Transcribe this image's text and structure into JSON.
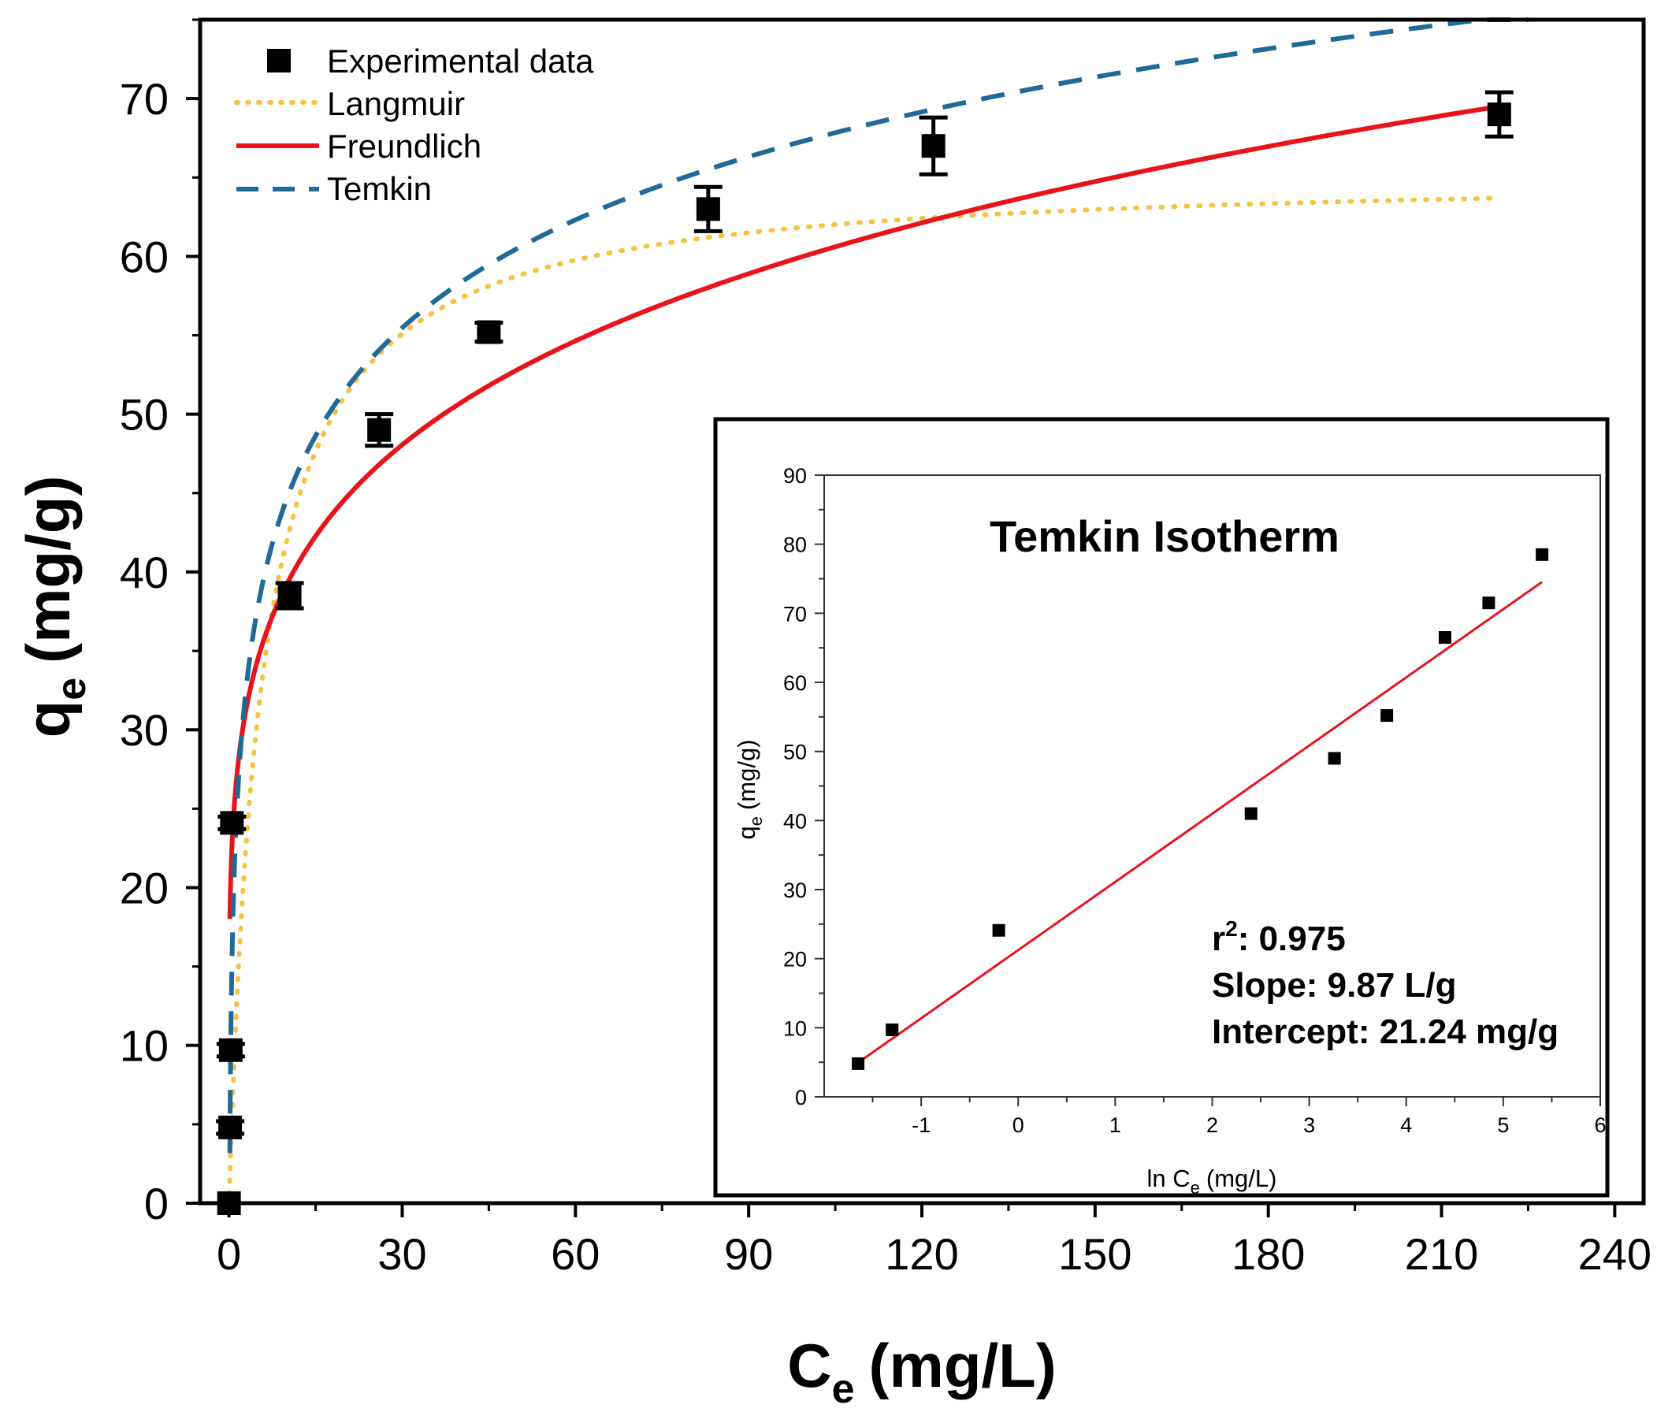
{
  "chart_data": [
    {
      "type": "scatter",
      "xlabel": "C",
      "xlabel_sub": "e",
      "xlabel_unit": "(mg/L)",
      "ylabel": "q",
      "ylabel_sub": "e",
      "ylabel_unit": "(mg/g)",
      "xlim": [
        -5,
        245
      ],
      "ylim": [
        0,
        75
      ],
      "xticks": [
        0,
        30,
        60,
        90,
        120,
        150,
        180,
        210,
        240
      ],
      "yticks": [
        0,
        10,
        20,
        30,
        40,
        50,
        60,
        70
      ],
      "legend": {
        "position": "top-left",
        "entries": [
          {
            "label": "Experimental data",
            "style": "square-marker",
            "color": "#000000"
          },
          {
            "label": "Langmuir",
            "style": "dotted",
            "color": "#F5C242"
          },
          {
            "label": "Freundlich",
            "style": "solid",
            "color": "#E8141B"
          },
          {
            "label": "Temkin",
            "style": "dashed",
            "color": "#1F6A96"
          }
        ]
      },
      "series": [
        {
          "name": "Experimental data",
          "kind": "points",
          "x": [
            0.0,
            0.2,
            0.3,
            0.5,
            10.5,
            26,
            45,
            83,
            122,
            220
          ],
          "y": [
            0.0,
            4.8,
            9.7,
            24.1,
            38.5,
            49.0,
            55.2,
            63.0,
            67.0,
            69.0
          ],
          "err": [
            0.0,
            0.4,
            0.4,
            0.4,
            0.8,
            1.0,
            0.6,
            1.4,
            1.8,
            1.4
          ]
        },
        {
          "name": "Langmuir",
          "kind": "model",
          "equation": "qm*KL*x/(1+KL*x)",
          "params": {
            "qm": 65.3,
            "KL": 0.18
          },
          "x_range": [
            0.05,
            220
          ],
          "color": "#F5C242"
        },
        {
          "name": "Freundlich",
          "kind": "model",
          "equation": "KF*x^(1/n)",
          "params": {
            "KF": 25.6,
            "n": 5.4
          },
          "x_range": [
            0.15,
            220
          ],
          "color": "#E8141B"
        },
        {
          "name": "Temkin",
          "kind": "model",
          "equation": "B*ln(A*x)",
          "params": {
            "A": 9.2,
            "B": 9.87
          },
          "x_range": [
            0.15,
            225
          ],
          "color": "#1F6A96"
        }
      ]
    },
    {
      "type": "scatter",
      "title": "Temkin Isotherm",
      "xlabel": "ln C",
      "xlabel_sub": "e",
      "xlabel_unit": "(mg/L)",
      "ylabel": "q",
      "ylabel_sub": "e",
      "ylabel_unit": "(mg/g)",
      "xlim": [
        -2,
        6
      ],
      "ylim": [
        0,
        90
      ],
      "xticks": [
        -1,
        0,
        1,
        2,
        3,
        4,
        5,
        6
      ],
      "yticks": [
        0,
        10,
        20,
        30,
        40,
        50,
        60,
        70,
        80,
        90
      ],
      "points": {
        "x": [
          -1.65,
          -1.3,
          -0.2,
          2.4,
          3.26,
          3.8,
          4.4,
          4.85,
          5.4
        ],
        "y": [
          4.8,
          9.7,
          24.1,
          41.0,
          49.0,
          55.2,
          66.5,
          71.5,
          78.5
        ]
      },
      "fit_line": {
        "slope": 9.87,
        "intercept": 21.24,
        "x_range": [
          -1.65,
          5.4
        ],
        "color": "#E8141B"
      },
      "stats": {
        "r2_label": "r",
        "r2_sup": "2",
        "r2_value": ": 0.975",
        "slope_text": "Slope: 9.87 L/g",
        "intercept_text": "Intercept: 21.24 mg/g"
      }
    }
  ]
}
